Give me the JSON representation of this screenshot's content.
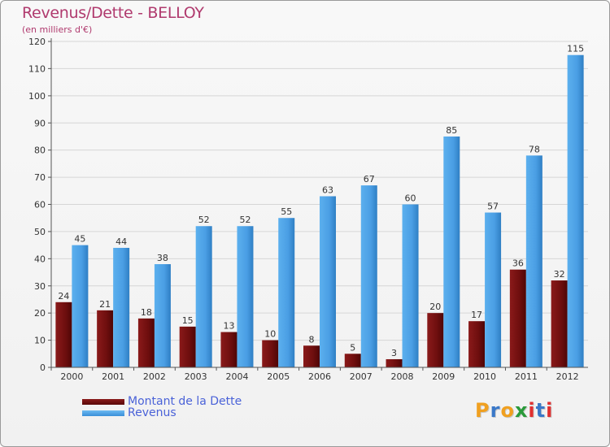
{
  "chart_data": {
    "type": "bar",
    "title": "Revenus/Dette - BELLOY",
    "subtitle": "(en milliers d'€)",
    "categories": [
      "2000",
      "2001",
      "2002",
      "2003",
      "2004",
      "2005",
      "2006",
      "2007",
      "2008",
      "2009",
      "2010",
      "2011",
      "2012"
    ],
    "series": [
      {
        "name": "Montant de la Dette",
        "color": "#7a1010",
        "values": [
          24,
          21,
          18,
          15,
          13,
          10,
          8,
          5,
          3,
          20,
          17,
          36,
          32
        ]
      },
      {
        "name": "Revenus",
        "color": "#4da3e8",
        "values": [
          45,
          44,
          38,
          52,
          52,
          55,
          63,
          67,
          60,
          85,
          57,
          78,
          115
        ]
      }
    ],
    "ylim": [
      0,
      120
    ],
    "yticks": [
      0,
      10,
      20,
      30,
      40,
      50,
      60,
      70,
      80,
      90,
      100,
      110,
      120
    ],
    "grid": true,
    "legend": "bottom-left"
  },
  "branding": {
    "logo_letters": [
      "P",
      "r",
      "o",
      "x",
      "i",
      "t",
      "i"
    ],
    "logo_colors": [
      "#f0a020",
      "#3a78c8",
      "#f0a020",
      "#2a9a3a",
      "#e03030",
      "#3a78c8",
      "#e03030"
    ]
  }
}
